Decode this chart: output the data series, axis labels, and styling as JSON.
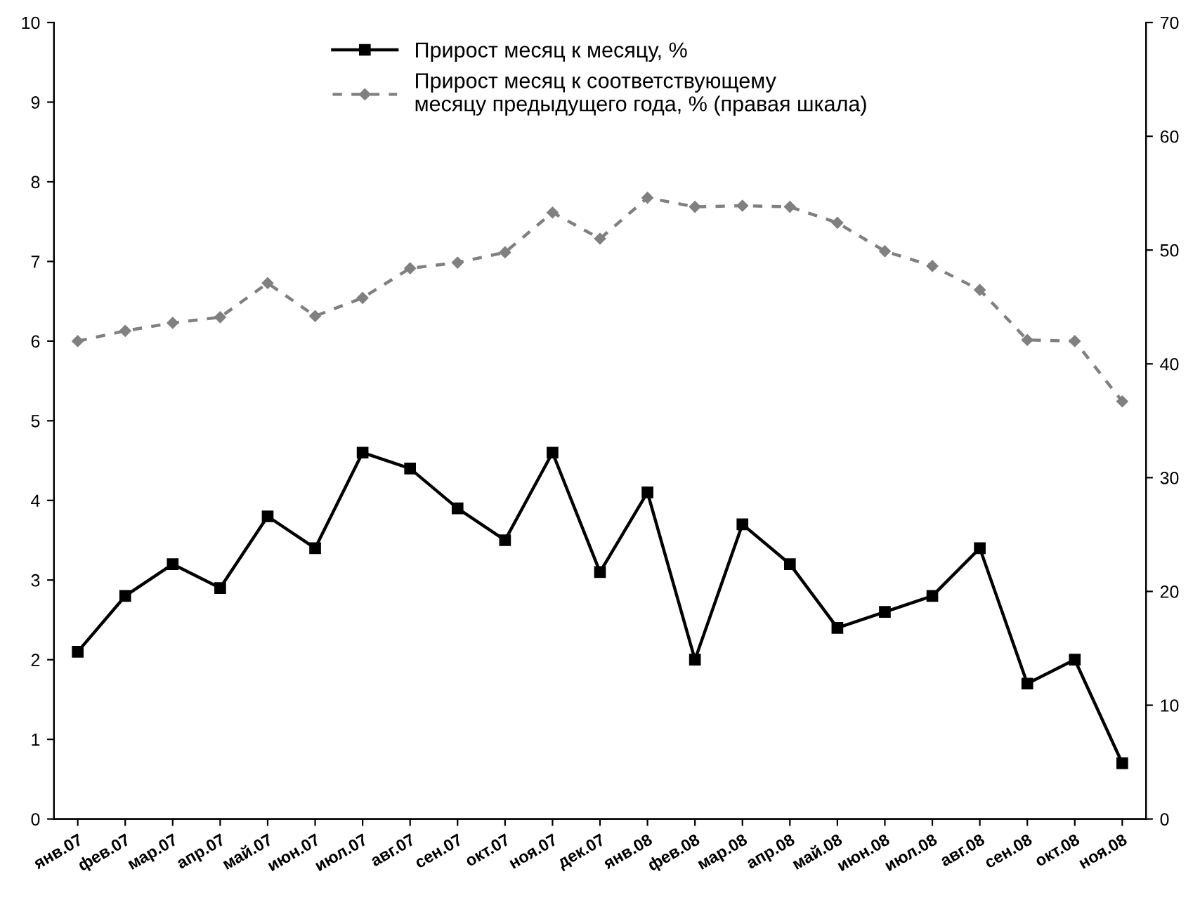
{
  "chart_data": {
    "type": "line",
    "categories": [
      "янв.07",
      "фев.07",
      "мар.07",
      "апр.07",
      "май.07",
      "июн.07",
      "июл.07",
      "авг.07",
      "сен.07",
      "окт.07",
      "ноя.07",
      "дек.07",
      "янв.08",
      "фев.08",
      "мар.08",
      "апр.08",
      "май.08",
      "июн.08",
      "июл.08",
      "авг.08",
      "сен.08",
      "окт.08",
      "ноя.08"
    ],
    "series": [
      {
        "name": "Прирост месяц к месяцу, %",
        "color": "#000000",
        "marker": "square",
        "line_style": "solid",
        "values": [
          2.1,
          2.8,
          3.2,
          2.9,
          3.8,
          3.4,
          4.6,
          4.4,
          3.9,
          3.5,
          4.6,
          3.1,
          4.1,
          2.0,
          3.7,
          3.2,
          2.4,
          2.6,
          2.8,
          3.4,
          1.7,
          2.0,
          0.7
        ]
      },
      {
        "name": "Прирост месяц к соответствующему\nмесяцу предыдущего года, % (правая шкала)",
        "color": "#808080",
        "marker": "diamond",
        "line_style": "dashed",
        "axis": "y2",
        "values": [
          42.0,
          42.9,
          43.6,
          44.1,
          47.1,
          44.2,
          45.8,
          48.4,
          48.9,
          49.8,
          53.3,
          51.0,
          54.6,
          53.8,
          53.9,
          53.8,
          52.4,
          49.9,
          48.6,
          46.5,
          42.1,
          42.0,
          36.7
        ]
      }
    ],
    "ylim": [
      0,
      10
    ],
    "yticks": [
      0,
      1,
      2,
      3,
      4,
      5,
      6,
      7,
      8,
      9,
      10
    ],
    "y2lim": [
      0,
      70
    ],
    "y2ticks": [
      0,
      10,
      20,
      30,
      40,
      50,
      60,
      70
    ],
    "grid": false,
    "legend": "top"
  }
}
